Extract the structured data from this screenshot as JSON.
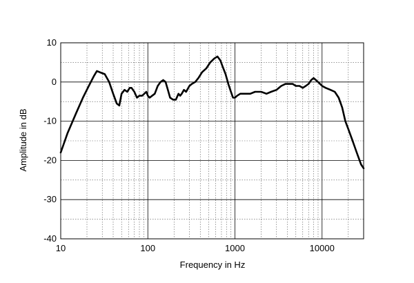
{
  "chart_data": {
    "type": "line",
    "title": "",
    "xlabel": "Frequency in Hz",
    "ylabel": "Amplitude in dB",
    "x_scale": "log",
    "xlim": [
      10,
      30000
    ],
    "ylim": [
      -40,
      10
    ],
    "x_ticks": [
      10,
      100,
      1000,
      10000
    ],
    "x_tick_labels": [
      "10",
      "100",
      "1000",
      "10000"
    ],
    "y_ticks": [
      10,
      0,
      -10,
      -20,
      -30,
      -40
    ],
    "y_tick_labels": [
      "10",
      "0",
      "-10",
      "-20",
      "-30",
      "-40"
    ],
    "grid": true,
    "line_color": "#000000",
    "series": [
      {
        "x": [
          10,
          12,
          15,
          18,
          21,
          24,
          26,
          28,
          32,
          36,
          40,
          44,
          47,
          50,
          54,
          58,
          62,
          65,
          70,
          75,
          80,
          86,
          91,
          96,
          100,
          105,
          112,
          120,
          130,
          140,
          150,
          160,
          170,
          180,
          195,
          210,
          225,
          235,
          245,
          260,
          275,
          300,
          320,
          350,
          380,
          420,
          470,
          520,
          580,
          630,
          680,
          720,
          780,
          840,
          900,
          950,
          1000,
          1060,
          1150,
          1300,
          1500,
          1700,
          2000,
          2300,
          2600,
          3000,
          3400,
          3800,
          4200,
          4600,
          5000,
          5500,
          6000,
          6500,
          7000,
          7500,
          8000,
          8500,
          9000,
          10000,
          11000,
          12500,
          14000,
          15500,
          17000,
          18500,
          20000,
          22000,
          25000,
          28000,
          30000
        ],
        "y": [
          -18,
          -13,
          -8,
          -4,
          -1,
          1.5,
          2.8,
          2.5,
          2,
          0,
          -3,
          -5.5,
          -6,
          -3,
          -2,
          -2.5,
          -1.5,
          -1.5,
          -2.5,
          -4,
          -3.5,
          -3.5,
          -3,
          -2.5,
          -3.5,
          -4,
          -3.5,
          -3,
          -1,
          0,
          0.5,
          0,
          -2,
          -4,
          -4.5,
          -4.5,
          -3,
          -3.5,
          -3,
          -2,
          -2.5,
          -1,
          -0.5,
          0,
          1,
          2.5,
          3.5,
          5,
          6,
          6.5,
          5.5,
          4,
          2,
          -0.5,
          -2.5,
          -4,
          -4,
          -3.5,
          -3,
          -3,
          -3,
          -2.5,
          -2.5,
          -3,
          -2.5,
          -2,
          -1,
          -0.5,
          -0.5,
          -0.5,
          -1,
          -1,
          -1.5,
          -1,
          -0.5,
          0.5,
          1,
          0.5,
          0,
          -1,
          -1.5,
          -2,
          -2.5,
          -4,
          -6.5,
          -10,
          -12,
          -14.5,
          -18,
          -21,
          -22
        ]
      }
    ]
  }
}
